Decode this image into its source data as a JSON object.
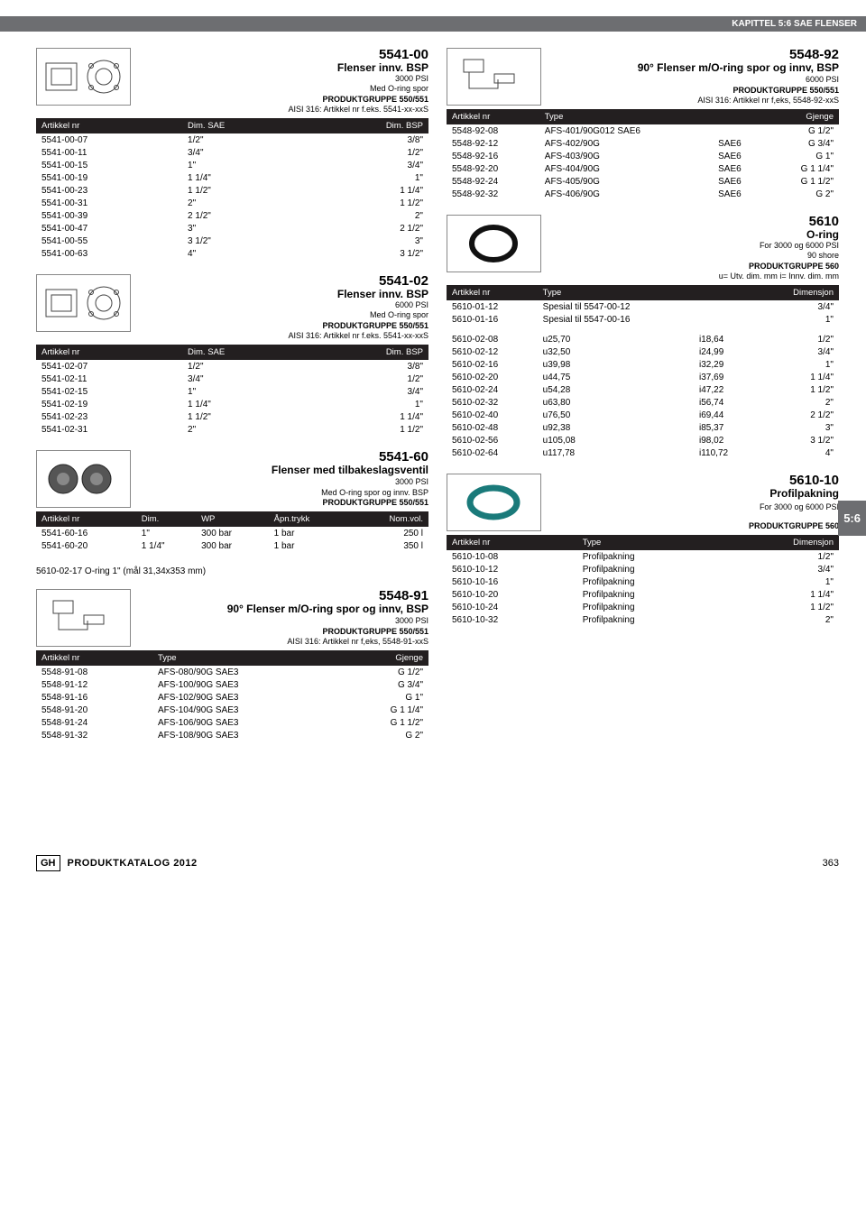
{
  "header": "KAPITTEL 5:6 SAE FLENSER",
  "side_tab": "5:6",
  "footer": {
    "brand": "GH",
    "text": "PRODUKTKATALOG 2012",
    "page": "363"
  },
  "p5541_00": {
    "code": "5541-00",
    "title": "Flenser innv. BSP",
    "lines": [
      "3000 PSI",
      "Med O-ring spor",
      "PRODUKTGRUPPE 550/551",
      "AISI 316: Artikkel nr f.eks. 5541-xx-xxS"
    ],
    "headers": [
      "Artikkel nr",
      "Dim. SAE",
      "Dim. BSP"
    ],
    "rows": [
      [
        "5541-00-07",
        "1/2\"",
        "3/8\""
      ],
      [
        "5541-00-11",
        "3/4\"",
        "1/2\""
      ],
      [
        "5541-00-15",
        "1\"",
        "3/4\""
      ],
      [
        "5541-00-19",
        "1 1/4\"",
        "1\""
      ],
      [
        "5541-00-23",
        "1 1/2\"",
        "1 1/4\""
      ],
      [
        "5541-00-31",
        "2\"",
        "1 1/2\""
      ],
      [
        "5541-00-39",
        "2 1/2\"",
        "2\""
      ],
      [
        "5541-00-47",
        "3\"",
        "2 1/2\""
      ],
      [
        "5541-00-55",
        "3 1/2\"",
        "3\""
      ],
      [
        "5541-00-63",
        "4\"",
        "3 1/2\""
      ]
    ]
  },
  "p5541_02": {
    "code": "5541-02",
    "title": "Flenser innv. BSP",
    "lines": [
      "6000 PSI",
      "Med O-ring spor",
      "PRODUKTGRUPPE 550/551",
      "AISI 316: Artikkel nr f.eks. 5541-xx-xxS"
    ],
    "headers": [
      "Artikkel nr",
      "Dim. SAE",
      "Dim. BSP"
    ],
    "rows": [
      [
        "5541-02-07",
        "1/2\"",
        "3/8\""
      ],
      [
        "5541-02-11",
        "3/4\"",
        "1/2\""
      ],
      [
        "5541-02-15",
        "1\"",
        "3/4\""
      ],
      [
        "5541-02-19",
        "1 1/4\"",
        "1\""
      ],
      [
        "5541-02-23",
        "1 1/2\"",
        "1 1/4\""
      ],
      [
        "5541-02-31",
        "2\"",
        "1 1/2\""
      ]
    ]
  },
  "p5541_60": {
    "code": "5541-60",
    "title": "Flenser med tilbakeslagsventil",
    "lines": [
      "3000 PSI",
      "Med O-ring spor og innv. BSP",
      "PRODUKTGRUPPE 550/551"
    ],
    "headers": [
      "Artikkel nr",
      "Dim.",
      "WP",
      "Åpn.trykk",
      "Nom.vol."
    ],
    "rows": [
      [
        "5541-60-16",
        "1\"",
        "300 bar",
        "1 bar",
        "250 l"
      ],
      [
        "5541-60-20",
        "1 1/4\"",
        "300 bar",
        "1 bar",
        "350 l"
      ]
    ],
    "note": "5610-02-17   O-ring 1\" (mål 31,34x353 mm)"
  },
  "p5548_91": {
    "code": "5548-91",
    "title": "90° Flenser m/O-ring spor og innv, BSP",
    "lines": [
      "3000 PSI",
      "PRODUKTGRUPPE 550/551",
      "AISI 316: Artikkel nr f,eks, 5548-91-xxS"
    ],
    "headers": [
      "Artikkel nr",
      "Type",
      "Gjenge"
    ],
    "rows": [
      [
        "5548-91-08",
        "AFS-080/90G SAE3",
        "G 1/2\""
      ],
      [
        "5548-91-12",
        "AFS-100/90G SAE3",
        "G 3/4\""
      ],
      [
        "5548-91-16",
        "AFS-102/90G SAE3",
        "G 1\""
      ],
      [
        "5548-91-20",
        "AFS-104/90G SAE3",
        "G 1 1/4\""
      ],
      [
        "5548-91-24",
        "AFS-106/90G SAE3",
        "G 1 1/2\""
      ],
      [
        "5548-91-32",
        "AFS-108/90G SAE3",
        "G 2\""
      ]
    ]
  },
  "p5548_92": {
    "code": "5548-92",
    "title": "90° Flenser m/O-ring spor og innv, BSP",
    "lines": [
      "6000 PSI",
      "PRODUKTGRUPPE 550/551",
      "AISI 316: Artikkel nr f,eks, 5548-92-xxS"
    ],
    "headers": [
      "Artikkel nr",
      "Type",
      "",
      "Gjenge"
    ],
    "rows": [
      [
        "5548-92-08",
        "AFS-401/90G012 SAE6",
        "",
        "G 1/2\""
      ],
      [
        "5548-92-12",
        "AFS-402/90G",
        "SAE6",
        "G 3/4\""
      ],
      [
        "5548-92-16",
        "AFS-403/90G",
        "SAE6",
        "G 1\""
      ],
      [
        "5548-92-20",
        "AFS-404/90G",
        "SAE6",
        "G 1 1/4\""
      ],
      [
        "5548-92-24",
        "AFS-405/90G",
        "SAE6",
        "G 1 1/2\""
      ],
      [
        "5548-92-32",
        "AFS-406/90G",
        "SAE6",
        "G 2\""
      ]
    ]
  },
  "p5610": {
    "code": "5610",
    "title": "O-ring",
    "lines": [
      "For 3000 og 6000 PSI",
      "90 shore",
      "PRODUKTGRUPPE 560",
      "u= Utv. dim. mm  i= Innv. dim. mm"
    ],
    "headers": [
      "Artikkel nr",
      "Type",
      "",
      "Dimensjon"
    ],
    "rows1": [
      [
        "5610-01-12",
        "Spesial til 5547-00-12",
        "",
        "3/4\""
      ],
      [
        "5610-01-16",
        "Spesial til 5547-00-16",
        "",
        "1\""
      ]
    ],
    "rows2": [
      [
        "5610-02-08",
        "u25,70",
        "i18,64",
        "1/2\""
      ],
      [
        "5610-02-12",
        "u32,50",
        "i24,99",
        "3/4\""
      ],
      [
        "5610-02-16",
        "u39,98",
        "i32,29",
        "1\""
      ],
      [
        "5610-02-20",
        "u44,75",
        "i37,69",
        "1 1/4\""
      ],
      [
        "5610-02-24",
        "u54,28",
        "i47,22",
        "1 1/2\""
      ],
      [
        "5610-02-32",
        "u63,80",
        "i56,74",
        "2\""
      ],
      [
        "5610-02-40",
        "u76,50",
        "i69,44",
        "2 1/2\""
      ],
      [
        "5610-02-48",
        "u92,38",
        "i85,37",
        "3\""
      ],
      [
        "5610-02-56",
        "u105,08",
        "i98,02",
        "3 1/2\""
      ],
      [
        "5610-02-64",
        "u117,78",
        "i110,72",
        "4\""
      ]
    ]
  },
  "p5610_10": {
    "code": "5610-10",
    "title": "Profilpakning",
    "lines": [
      "For 3000 og 6000 PSI",
      "PRODUKTGRUPPE 560"
    ],
    "headers": [
      "Artikkel nr",
      "Type",
      "Dimensjon"
    ],
    "rows": [
      [
        "5610-10-08",
        "Profilpakning",
        "1/2\""
      ],
      [
        "5610-10-12",
        "Profilpakning",
        "3/4\""
      ],
      [
        "5610-10-16",
        "Profilpakning",
        "1\""
      ],
      [
        "5610-10-20",
        "Profilpakning",
        "1 1/4\""
      ],
      [
        "5610-10-24",
        "Profilpakning",
        "1 1/2\""
      ],
      [
        "5610-10-32",
        "Profilpakning",
        "2\""
      ]
    ]
  }
}
